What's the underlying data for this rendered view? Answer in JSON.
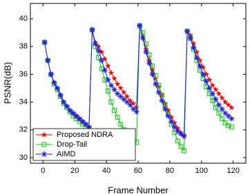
{
  "chart_data": {
    "type": "line",
    "x_label": "Frame Number",
    "y_label": "PSNR(dB)",
    "x": [
      1,
      3,
      5,
      7,
      9,
      11,
      13,
      15,
      17,
      19,
      21,
      23,
      25,
      27,
      29,
      31,
      33,
      35,
      37,
      39,
      41,
      43,
      45,
      47,
      49,
      51,
      53,
      55,
      57,
      59,
      61,
      63,
      65,
      67,
      69,
      71,
      73,
      75,
      77,
      79,
      81,
      83,
      85,
      87,
      89,
      91,
      93,
      95,
      97,
      99,
      101,
      103,
      105,
      107,
      109,
      111,
      113,
      115,
      117,
      119
    ],
    "series": [
      {
        "name": "Proposed NDRA",
        "color": "#ff0000",
        "marker": "star",
        "values": [
          38.3,
          37.0,
          36.0,
          35.4,
          35.0,
          34.5,
          34.0,
          33.7,
          33.4,
          33.2,
          33.0,
          32.8,
          32.6,
          32.4,
          32.2,
          39.2,
          38.3,
          38.0,
          37.6,
          37.1,
          36.6,
          36.1,
          35.7,
          35.3,
          35.0,
          34.7,
          34.4,
          34.1,
          33.9,
          33.6,
          39.5,
          38.7,
          37.8,
          37.0,
          36.3,
          35.7,
          35.1,
          34.5,
          33.9,
          33.4,
          32.9,
          32.5,
          32.1,
          31.8,
          31.5,
          39.1,
          38.8,
          38.2,
          37.6,
          37.0,
          36.5,
          36.0,
          35.6,
          35.2,
          34.9,
          34.6,
          34.3,
          34.0,
          33.8,
          33.6
        ]
      },
      {
        "name": "Drop-Tail",
        "color": "#00cc00",
        "marker": "square",
        "values": [
          38.3,
          37.0,
          36.0,
          35.3,
          34.9,
          34.4,
          33.9,
          33.6,
          33.3,
          33.0,
          32.8,
          32.6,
          32.4,
          32.2,
          32.1,
          39.2,
          38.0,
          37.2,
          36.4,
          35.6,
          34.8,
          34.0,
          33.4,
          32.9,
          32.4,
          32.0,
          31.7,
          31.4,
          31.2,
          31.1,
          39.5,
          39.0,
          38.2,
          37.4,
          36.6,
          35.9,
          35.2,
          34.5,
          33.8,
          33.1,
          32.4,
          31.8,
          31.2,
          30.8,
          30.5,
          39.1,
          38.6,
          37.8,
          37.0,
          36.3,
          35.7,
          35.1,
          34.6,
          34.1,
          33.6,
          33.2,
          32.8,
          32.5,
          32.3,
          32.2
        ]
      },
      {
        "name": "AIMD",
        "color": "#1a1aff",
        "marker": "asterisk",
        "values": [
          38.3,
          37.0,
          36.0,
          35.4,
          35.0,
          34.5,
          34.0,
          33.7,
          33.4,
          33.2,
          33.0,
          32.8,
          32.6,
          32.4,
          32.2,
          39.2,
          38.2,
          37.7,
          37.0,
          36.3,
          35.6,
          35.2,
          34.9,
          34.6,
          34.4,
          34.2,
          34.0,
          33.8,
          33.5,
          33.3,
          39.5,
          38.6,
          37.6,
          36.8,
          36.0,
          35.3,
          34.7,
          34.1,
          33.5,
          33.0,
          32.6,
          32.2,
          31.9,
          31.7,
          31.6,
          39.1,
          38.6,
          37.9,
          37.2,
          36.6,
          36.0,
          35.5,
          35.0,
          34.6,
          34.2,
          33.8,
          33.5,
          33.2,
          33.0,
          32.8
        ]
      }
    ],
    "xlim": [
      -8,
      128
    ],
    "ylim": [
      29.6,
      41.1
    ],
    "xticks": [
      0,
      20,
      40,
      60,
      80,
      100,
      120
    ],
    "yticks": [
      30,
      32,
      34,
      36,
      38,
      40
    ],
    "legend": "lower left"
  }
}
